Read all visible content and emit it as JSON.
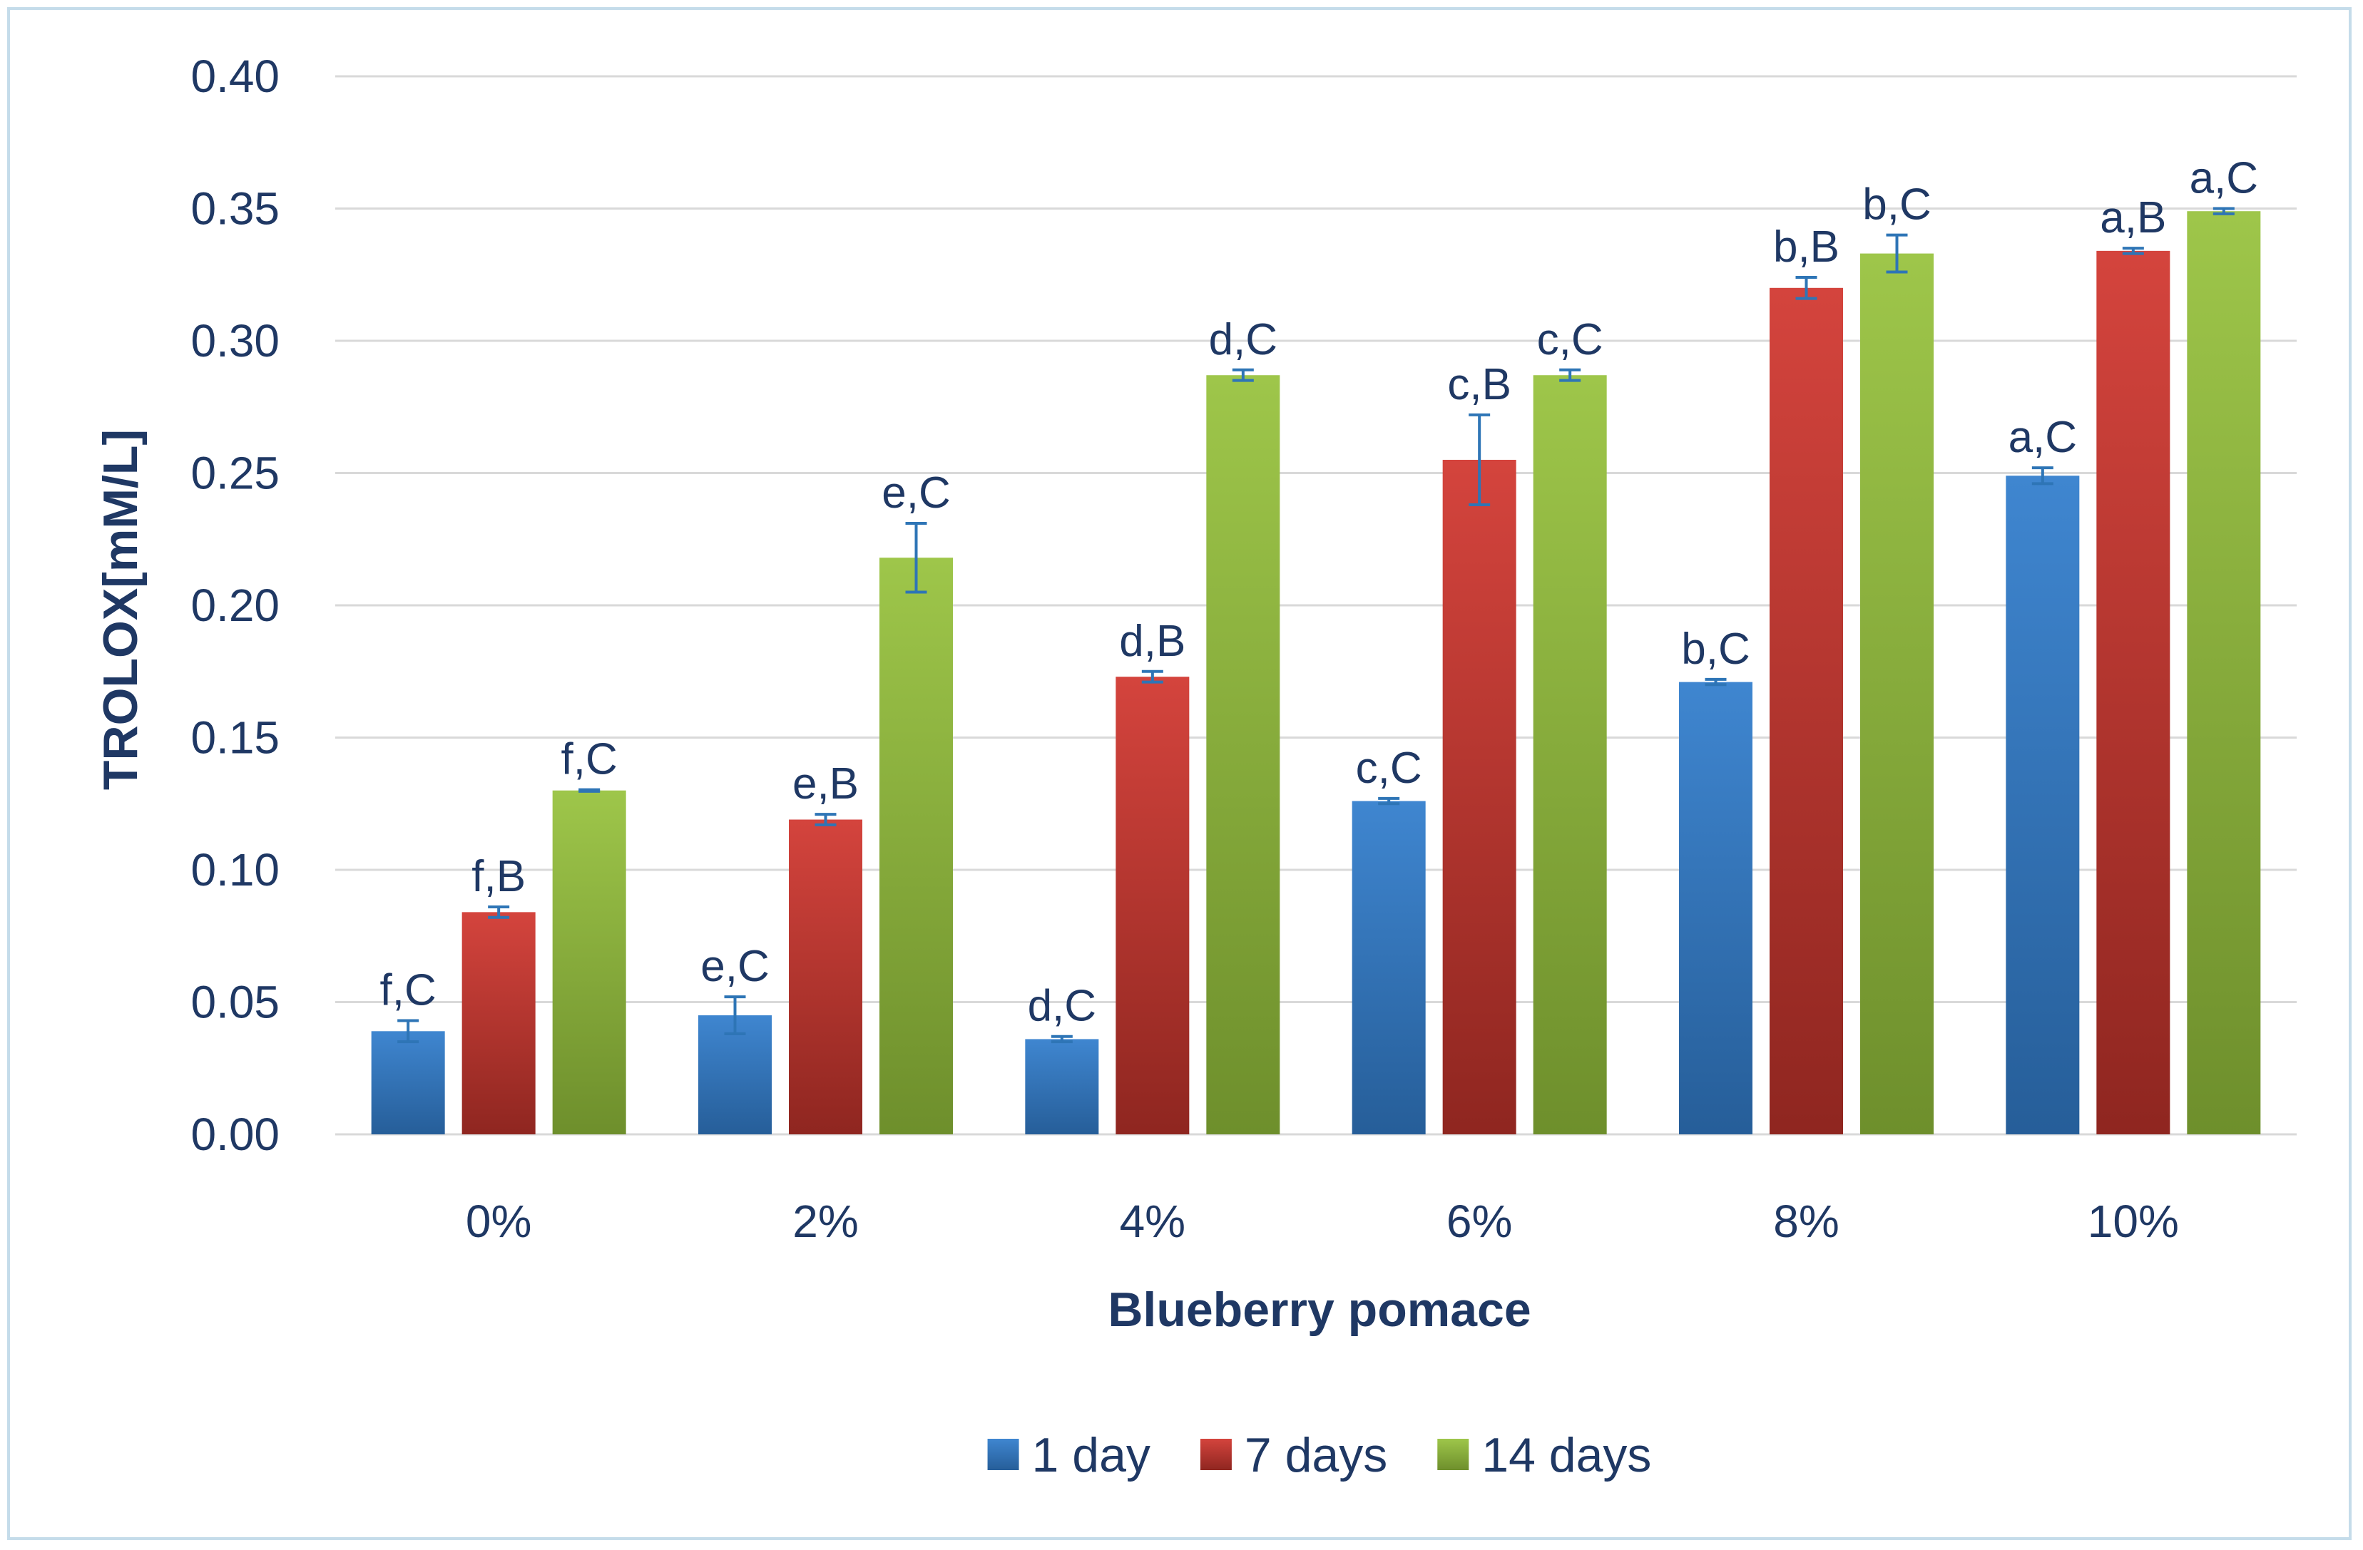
{
  "chart_data": {
    "type": "bar",
    "title": "",
    "xlabel": "Blueberry pomace",
    "ylabel": "TROLOX[mM/L]",
    "ylim": [
      0,
      0.4
    ],
    "yticks": [
      "0.00",
      "0.05",
      "0.10",
      "0.15",
      "0.20",
      "0.25",
      "0.30",
      "0.35",
      "0.40"
    ],
    "grid": true,
    "legend_position": "bottom",
    "categories": [
      "0%",
      "2%",
      "4%",
      "6%",
      "8%",
      "10%"
    ],
    "series": [
      {
        "name": "1 day",
        "color": "#2e75b6",
        "values": [
          0.039,
          0.045,
          0.036,
          0.126,
          0.171,
          0.249
        ],
        "errors": [
          0.004,
          0.007,
          0.001,
          0.001,
          0.001,
          0.003
        ],
        "labels": [
          "f,C",
          "e,C",
          "d,C",
          "c,C",
          "b,C",
          "a,C"
        ]
      },
      {
        "name": "7 days",
        "color": "#c0392b",
        "values": [
          0.084,
          0.119,
          0.173,
          0.255,
          0.32,
          0.334
        ],
        "errors": [
          0.002,
          0.002,
          0.002,
          0.017,
          0.004,
          0.001
        ],
        "labels": [
          "f,B",
          "e,B",
          "d,B",
          "c,B",
          "b,B",
          "a,B"
        ]
      },
      {
        "name": "14 days",
        "color": "#8db33a",
        "values": [
          0.13,
          0.218,
          0.287,
          0.287,
          0.333,
          0.349
        ],
        "errors": [
          0.0003,
          0.013,
          0.002,
          0.002,
          0.007,
          0.001
        ],
        "labels": [
          "f,C",
          "e,C",
          "d,C",
          "c,C",
          "b,C",
          "a,C"
        ]
      }
    ]
  }
}
